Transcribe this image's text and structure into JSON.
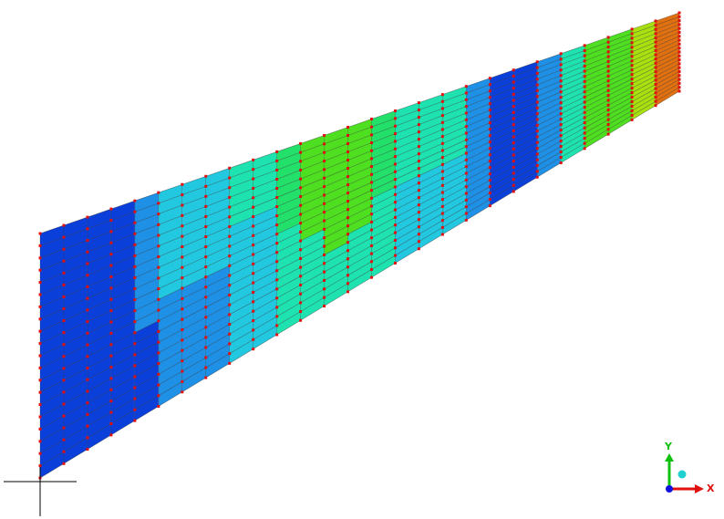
{
  "viewport": {
    "background": "#ffffff"
  },
  "mesh": {
    "columns": 27,
    "rows": 20,
    "element_edge_color": "#2a2a2a",
    "node_color": "#e01010"
  },
  "contour": {
    "palette": [
      "#0b3fd9",
      "#1e90e6",
      "#22c8e0",
      "#1ee3b0",
      "#22e06a",
      "#4ee020",
      "#a8e010",
      "#e0c010",
      "#e07010",
      "#d83010"
    ]
  },
  "axis_triad": {
    "x_label": "X",
    "y_label": "Y",
    "x_color": "#e01010",
    "y_color": "#10c010",
    "z_color": "#1010e0",
    "pivot_color": "#20d0d0"
  },
  "icons": {
    "triad": "axis-triad-icon",
    "origin": "origin-crosshair-icon"
  }
}
